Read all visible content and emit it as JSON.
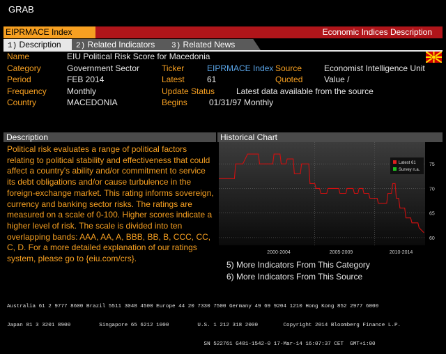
{
  "grab": "GRAB",
  "title": {
    "code": "EIPRMACE Index",
    "right": "Economic Indices Description"
  },
  "tabs": [
    {
      "num": "1)",
      "label": "Description"
    },
    {
      "num": "2)",
      "label": "Related Indicators"
    },
    {
      "num": "3)",
      "label": "Related News"
    }
  ],
  "fields": {
    "name_label": "Name",
    "name_value": "EIU Political Risk Score for Macedonia",
    "category_label": "Category",
    "category_value": "Government Sector",
    "period_label": "Period",
    "period_value": "FEB 2014",
    "frequency_label": "Frequency",
    "frequency_value": "Monthly",
    "country_label": "Country",
    "country_value": "MACEDONIA",
    "ticker_label": "Ticker",
    "ticker_value": "EIPRMACE Index",
    "latest_label": "Latest",
    "latest_value": "61",
    "update_label": "Update Status",
    "update_value": "Latest data available from the source",
    "begins_label": "Begins",
    "begins_value": "01/31/97 Monthly",
    "source_label": "Source",
    "source_value": "Economist Intelligence Unit",
    "quoted_label": "Quoted",
    "quoted_value": "Value /"
  },
  "description": {
    "header": "Description",
    "text": "Political risk evaluates a range of political factors relating to political stability and effectiveness that could affect a country's ability and/or commitment to service its debt obligations and/or cause turbulence in the foreign-exchange market. This rating informs sovereign, currency and banking sector risks. The ratings are measured on a scale of 0-100. Higher scores indicate a higher level of risk. The scale is divided into ten overlapping bands: AAA, AA, A, BBB, BB, B, CCC, CC, C, D. For a more detailed explanation of our ratings system, please go to {eiu.com/crs}."
  },
  "chart_header": "Historical Chart",
  "links": [
    {
      "num": "5)",
      "label": "More Indicators From This Category"
    },
    {
      "num": "6)",
      "label": "More Indicators From This Source"
    }
  ],
  "footer": {
    "line1": "Australia 61 2 9777 8600 Brazil 5511 3048 4500 Europe 44 20 7330 7500 Germany 49 69 9204 1210 Hong Kong 852 2977 6000",
    "line2": "Japan 81 3 3201 8900         Singapore 65 6212 1000         U.S. 1 212 318 2000        Copyright 2014 Bloomberg Finance L.P.",
    "line3": "                                                              SN 522761 G481-1542-0 17-Mar-14 16:07:37 CET  GMT+1:00"
  },
  "colors": {
    "orange": "#f7a021",
    "red": "#b0151a",
    "line": "#d01010",
    "ticker": "#5aa5e8"
  },
  "chart_data": {
    "type": "line",
    "x_ticks": [
      "2000-2004",
      "2005-2009",
      "2010-2014"
    ],
    "y_ticks": [
      60,
      65,
      70,
      75
    ],
    "ylim": [
      59,
      78
    ],
    "xlim": [
      1997,
      2014.2
    ],
    "grid": true,
    "legend": [
      {
        "label": "Latest 61",
        "color": "#e02020"
      },
      {
        "label": "Survey n.a.",
        "color": "#20c020"
      }
    ],
    "series": [
      {
        "name": "",
        "x": [
          1997.0,
          1997.5,
          1998.3,
          1998.4,
          1999.0,
          1999.4,
          1999.5,
          2000.3,
          2000.4,
          2001.5,
          2001.6,
          2002.1,
          2002.2,
          2002.6,
          2002.7,
          2003.2,
          2003.3,
          2003.8,
          2003.9,
          2004.5,
          2004.6,
          2005.0,
          2005.1,
          2005.4,
          2005.5,
          2006.0,
          2006.1,
          2006.4,
          2006.5,
          2007.0,
          2007.1,
          2007.6,
          2007.7,
          2008.2,
          2008.3,
          2008.6,
          2008.7,
          2009.0,
          2009.1,
          2009.5,
          2009.6,
          2010.2,
          2010.3,
          2011.0,
          2011.1,
          2011.4,
          2011.5,
          2011.7,
          2011.8,
          2012.0,
          2012.1,
          2012.5,
          2012.6,
          2013.0,
          2013.1,
          2013.6,
          2013.7,
          2014.1
        ],
        "values": [
          72,
          72,
          72,
          75,
          75,
          77,
          77,
          77,
          75,
          75,
          77,
          77,
          75,
          75,
          76,
          76,
          73,
          73,
          75,
          75,
          71,
          71,
          70,
          70,
          69,
          69,
          70,
          70,
          70,
          70,
          69,
          69,
          70,
          70,
          69,
          69,
          70,
          70,
          69,
          69,
          68,
          68,
          67,
          67,
          69,
          69,
          71,
          71,
          68,
          68,
          66,
          66,
          64,
          64,
          63,
          63,
          62,
          61
        ]
      }
    ]
  }
}
